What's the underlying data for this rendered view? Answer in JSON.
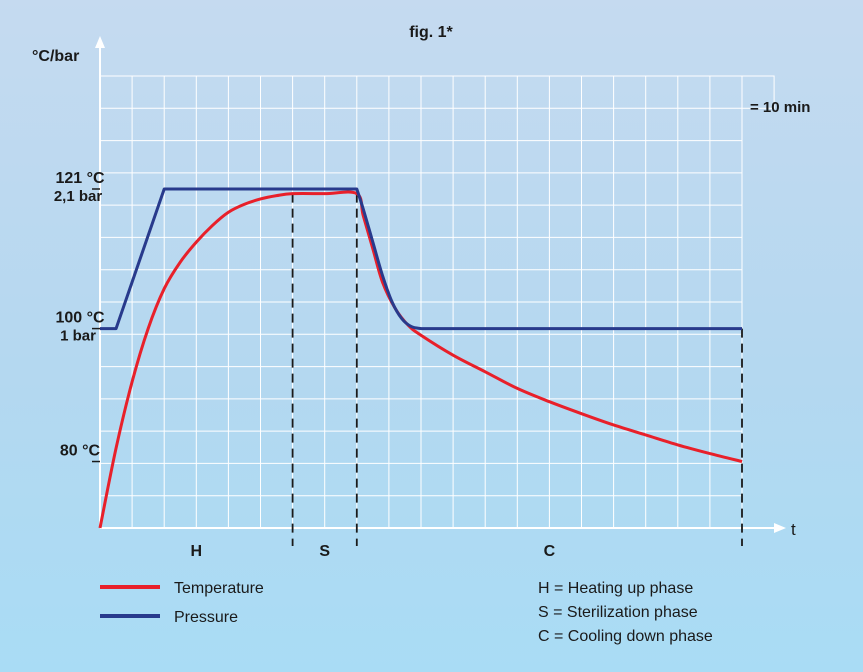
{
  "chart_data": {
    "type": "line",
    "title": "fig. 1*",
    "ylabel": "°C/bar",
    "xlabel": "t",
    "x_unit_note": "= 10 min",
    "ylim": [
      70,
      138
    ],
    "xlim": [
      0,
      200
    ],
    "grid": true,
    "y_ticks": [
      {
        "value": 121,
        "label": "121 °C",
        "sublabel": "2,1 bar"
      },
      {
        "value": 100,
        "label": "100 °C",
        "sublabel": "1 bar"
      },
      {
        "value": 80,
        "label": "80 °C",
        "sublabel": ""
      }
    ],
    "phases": [
      {
        "code": "H",
        "start": 0,
        "end": 60
      },
      {
        "code": "S",
        "start": 60,
        "end": 80
      },
      {
        "code": "C",
        "start": 80,
        "end": 200
      }
    ],
    "series": [
      {
        "name": "Temperature",
        "color": "#e8202a",
        "x": [
          0,
          5,
          10,
          15,
          20,
          25,
          30,
          35,
          40,
          45,
          50,
          55,
          60,
          70,
          80,
          82,
          85,
          88,
          92,
          96,
          100,
          110,
          120,
          130,
          140,
          150,
          160,
          170,
          180,
          190,
          200
        ],
        "y": [
          70,
          82,
          92,
          100,
          106,
          110,
          113,
          115.5,
          117.5,
          118.7,
          119.5,
          120,
          120.3,
          120.3,
          120.3,
          117,
          112,
          107,
          103,
          100.5,
          99,
          96,
          93.5,
          91,
          89,
          87.2,
          85.5,
          84,
          82.5,
          81.2,
          80
        ]
      },
      {
        "name": "Pressure",
        "color": "#283a8c",
        "x": [
          0,
          5,
          20,
          80,
          82,
          85,
          88,
          91,
          94,
          97,
          100,
          200
        ],
        "y": [
          100,
          100,
          121,
          121,
          118,
          113,
          108,
          104,
          101.5,
          100.3,
          100,
          100
        ]
      }
    ],
    "legend": {
      "placement": "bottom-left",
      "items": [
        {
          "label": "Temperature",
          "color": "#e8202a"
        },
        {
          "label": "Pressure",
          "color": "#283a8c"
        }
      ]
    },
    "phase_legend": [
      "H = Heating up phase",
      "S = Sterilization phase",
      "C = Cooling down phase"
    ]
  }
}
